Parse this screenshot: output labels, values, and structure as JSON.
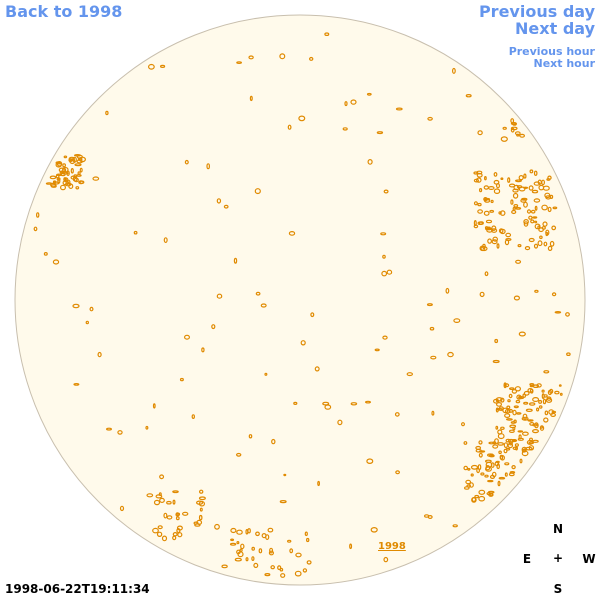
{
  "nav": {
    "back_label": "Back to 1998",
    "prev_day_label": "Previous day",
    "next_day_label": "Next day",
    "prev_hour_label": "Previous hour",
    "next_hour_label": "Next hour"
  },
  "timestamp": "1998-06-22T19:11:34",
  "compass": {
    "north": "N",
    "south": "S",
    "east": "E",
    "west": "W",
    "center": "+"
  },
  "region_label": "1998",
  "colors": {
    "disk_fill": "#fffaeb",
    "disk_border": "#c8bfae",
    "contour": "#e08a00",
    "link": "#6495ed"
  }
}
